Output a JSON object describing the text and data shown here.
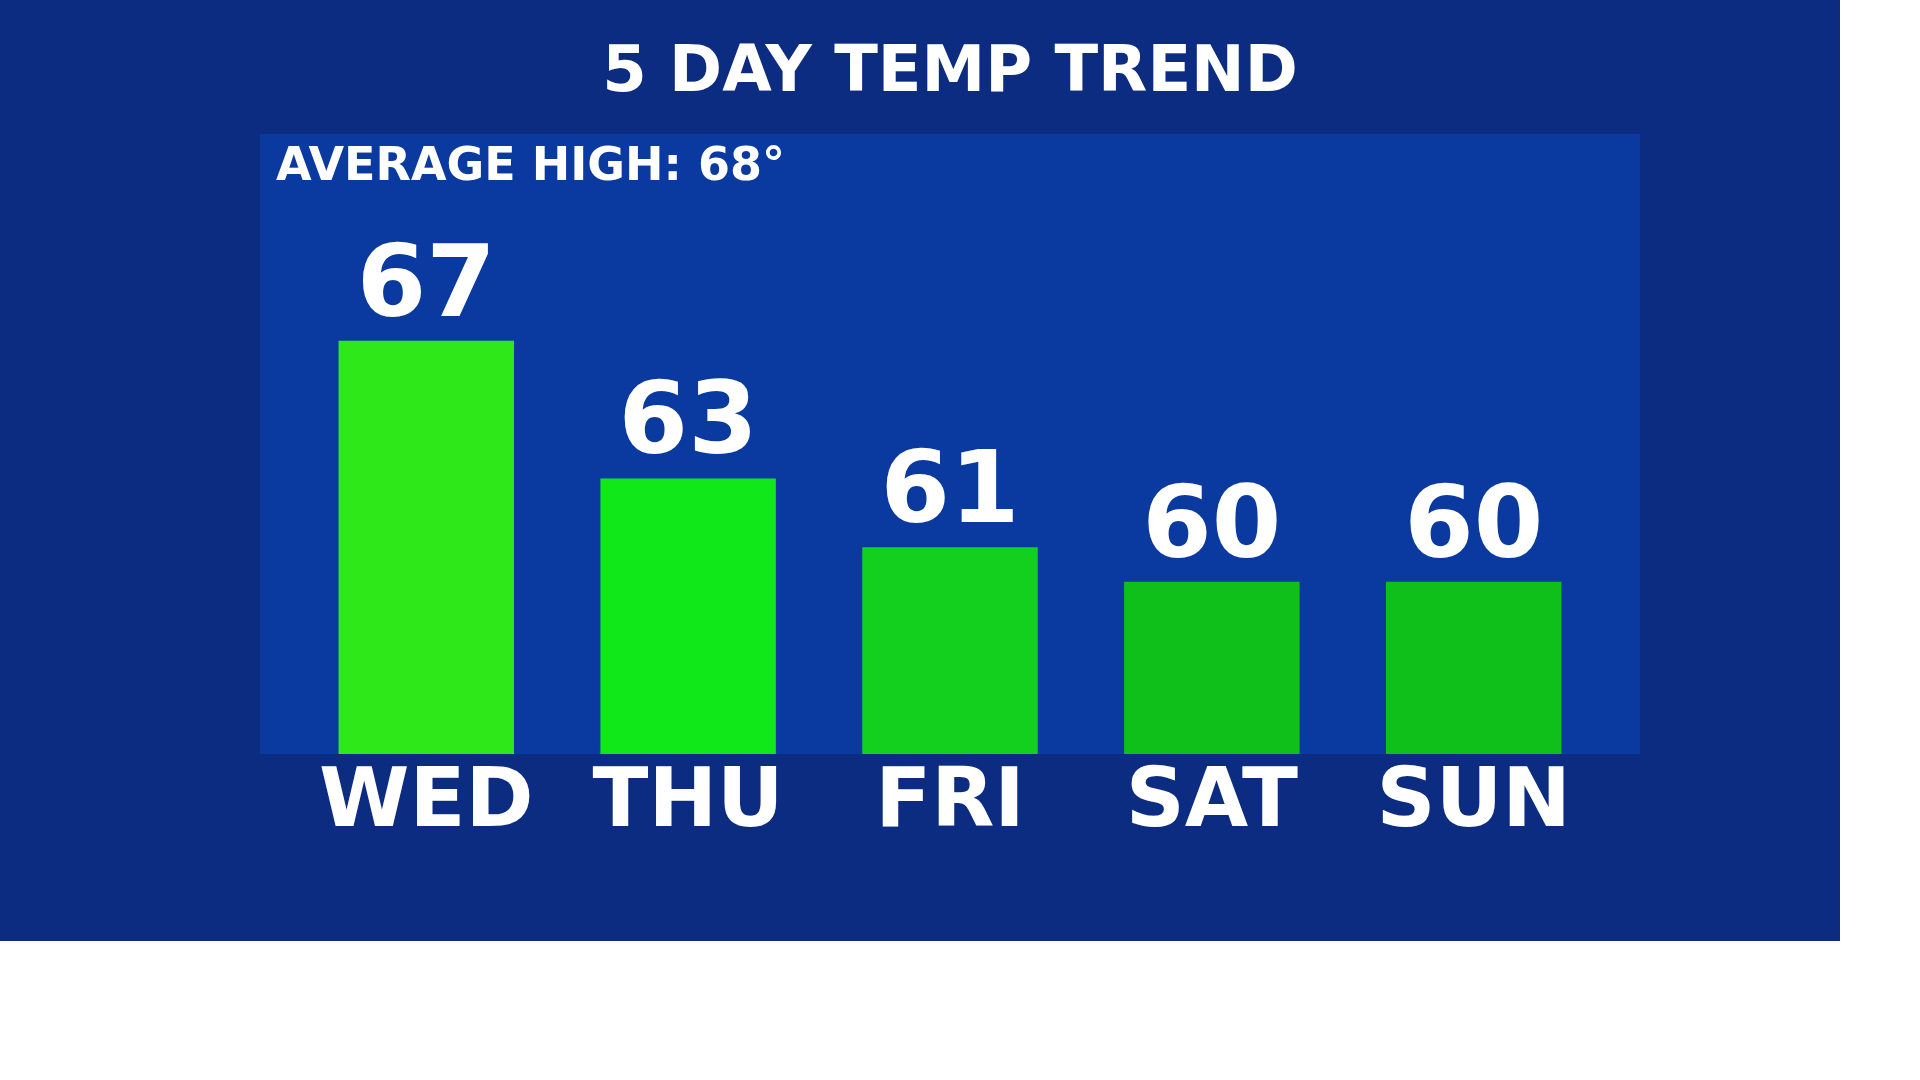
{
  "chart_data": {
    "type": "bar",
    "title": "5 DAY TEMP TREND",
    "annotations": [
      "AVERAGE HIGH: 68°"
    ],
    "categories": [
      "WED",
      "THU",
      "FRI",
      "SAT",
      "SUN"
    ],
    "values": [
      67,
      63,
      61,
      60,
      60
    ],
    "colors": [
      "#2ee81a",
      "#10e81a",
      "#13d01e",
      "#10c01a",
      "#10c01a"
    ],
    "ylim": [
      55,
      73
    ],
    "data_labels": true,
    "grid": false,
    "tick_labels": "x"
  }
}
